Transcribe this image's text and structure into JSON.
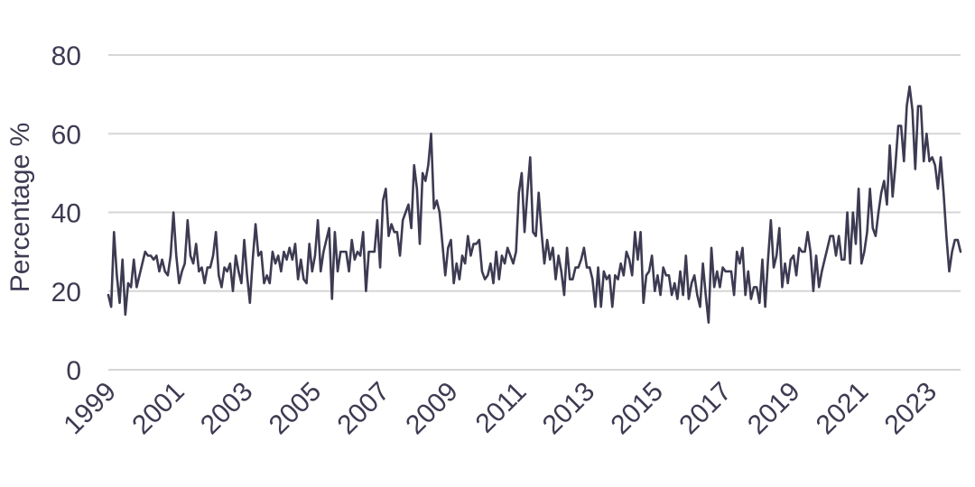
{
  "chart_data": {
    "type": "line",
    "title": "",
    "xlabel": "",
    "ylabel": "Percentage %",
    "ylim": [
      0,
      80
    ],
    "yticks": [
      0,
      20,
      40,
      60,
      80
    ],
    "xlim": [
      1999.0,
      2023.92
    ],
    "xticks": [
      "1999",
      "2001",
      "2003",
      "2005",
      "2007",
      "2009",
      "2011",
      "2013",
      "2015",
      "2017",
      "2019",
      "2021",
      "2023"
    ],
    "grid": "horizontal",
    "legend": "none",
    "colors": {
      "line": "#3d3b52",
      "grid": "#d6d6d6",
      "text": "#3d3b52"
    },
    "series": [
      {
        "values": [
          19,
          16,
          35,
          24,
          17,
          28,
          14,
          22,
          21,
          28,
          21,
          24,
          27,
          30,
          29,
          29,
          28,
          29,
          25,
          28,
          25,
          24,
          29,
          40,
          29,
          22,
          25,
          27,
          38,
          29,
          27,
          32,
          25,
          26,
          22,
          26,
          26,
          29,
          35,
          24,
          21,
          26,
          25,
          27,
          20,
          29,
          25,
          22,
          33,
          24,
          17,
          28,
          37,
          29,
          30,
          22,
          24,
          22,
          30,
          27,
          29,
          25,
          30,
          28,
          31,
          28,
          32,
          23,
          28,
          23,
          22,
          32,
          25,
          29,
          38,
          25,
          30,
          33,
          36,
          18,
          35,
          25,
          30,
          30,
          30,
          25,
          33,
          28,
          30,
          29,
          35,
          20,
          30,
          30,
          30,
          38,
          26,
          43,
          46,
          34,
          37,
          35,
          35,
          29,
          38,
          40,
          42,
          36,
          52,
          46,
          32,
          50,
          48,
          52,
          60,
          41,
          43,
          40,
          32,
          24,
          31,
          33,
          22,
          27,
          23,
          29,
          27,
          34,
          29,
          32,
          32,
          33,
          25,
          23,
          24,
          27,
          22,
          30,
          23,
          29,
          27,
          31,
          29,
          27,
          30,
          45,
          50,
          35,
          45,
          54,
          35,
          34,
          45,
          35,
          27,
          33,
          28,
          31,
          23,
          29,
          25,
          19,
          31,
          23,
          23,
          26,
          26,
          28,
          31,
          26,
          26,
          23,
          16,
          26,
          16,
          25,
          23,
          24,
          16,
          24,
          23,
          27,
          24,
          30,
          28,
          24,
          35,
          28,
          35,
          17,
          24,
          25,
          29,
          20,
          24,
          19,
          26,
          24,
          24,
          19,
          22,
          18,
          25,
          19,
          29,
          18,
          22,
          24,
          19,
          16,
          27,
          19,
          12,
          31,
          21,
          25,
          21,
          26,
          25,
          25,
          25,
          19,
          30,
          27,
          31,
          19,
          25,
          18,
          21,
          21,
          17,
          28,
          16,
          28,
          38,
          26,
          29,
          36,
          21,
          27,
          22,
          28,
          29,
          24,
          31,
          30,
          30,
          35,
          30,
          20,
          29,
          21,
          25,
          28,
          31,
          34,
          34,
          29,
          34,
          28,
          28,
          40,
          27,
          40,
          32,
          46,
          27,
          30,
          35,
          46,
          36,
          34,
          40,
          45,
          48,
          42,
          57,
          44,
          52,
          62,
          62,
          53,
          67,
          72,
          66,
          51,
          67,
          67,
          53,
          60,
          53,
          54,
          52,
          46,
          54,
          45,
          34,
          25,
          30,
          33,
          33,
          30
        ]
      }
    ]
  }
}
